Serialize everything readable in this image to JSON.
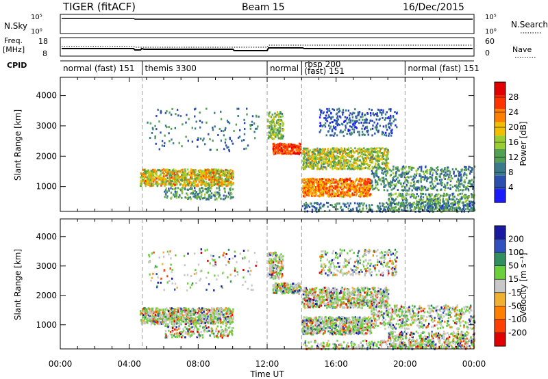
{
  "header": {
    "title": "TIGER (fitACF)",
    "beam": "Beam 15",
    "date": "16/Dec/2015"
  },
  "strip_labels": {
    "nsky": "N.Sky",
    "nsearch": "N.Search",
    "freq_top": "Freq.",
    "freq_unit": "[MHz]",
    "nave": "Nave",
    "cpid": "CPID",
    "nsky_tick_hi": "10^5",
    "nsky_tick_lo": "10^0",
    "freq_tick_hi": "18",
    "freq_tick_lo": "8",
    "nave_tick_hi": "60",
    "nave_tick_lo": "0"
  },
  "cpid_segments": [
    {
      "label": "normal (fast) 151",
      "start_hour": 0,
      "end_hour": 4.75
    },
    {
      "label": "themis 3300",
      "start_hour": 4.75,
      "end_hour": 12.0
    },
    {
      "label": "normal",
      "start_hour": 12.0,
      "end_hour": 14.0
    },
    {
      "label": "rbsp 200",
      "sub": "(fast) 151",
      "start_hour": 14.0,
      "end_hour": 20.0
    },
    {
      "label": "normal (fast) 151",
      "start_hour": 20.0,
      "end_hour": 24.0
    }
  ],
  "chart_data": [
    {
      "type": "heatmap",
      "name": "power-panel",
      "ylabel": "Slant Range [km]",
      "y_ticks": [
        "1000",
        "2000",
        "3000",
        "4000"
      ],
      "ylim": [
        180,
        4600
      ],
      "x_range_hours": [
        0,
        24
      ],
      "colorbar": {
        "label": "Power [dB]",
        "ticks": [
          "4",
          "8",
          "12",
          "16",
          "20",
          "24",
          "28"
        ],
        "colors": [
          "#1a1aff",
          "#2a4fb0",
          "#3a7a8a",
          "#52a052",
          "#9acd32",
          "#f0c000",
          "#ff8000",
          "#ff3300",
          "#e00000"
        ]
      }
    },
    {
      "type": "heatmap",
      "name": "velocity-panel",
      "ylabel": "Slant Range [km]",
      "y_ticks": [
        "1000",
        "2000",
        "3000",
        "4000"
      ],
      "ylim": [
        180,
        4600
      ],
      "x_range_hours": [
        0,
        24
      ],
      "xlabel": "Time UT",
      "x_ticks": [
        "00:00",
        "04:00",
        "08:00",
        "12:00",
        "16:00",
        "20:00",
        "00:00"
      ],
      "colorbar": {
        "label": "Velocity [m s^-1]",
        "ticks": [
          "200",
          "100",
          "50",
          "15",
          "-15",
          "-50",
          "-100",
          "-200"
        ],
        "colors": [
          "#1a1aa0",
          "#3050c0",
          "#2f8f5f",
          "#6ccf3c",
          "#c8c8c8",
          "#f0b030",
          "#ff8000",
          "#ff4000",
          "#e00000"
        ]
      }
    }
  ]
}
